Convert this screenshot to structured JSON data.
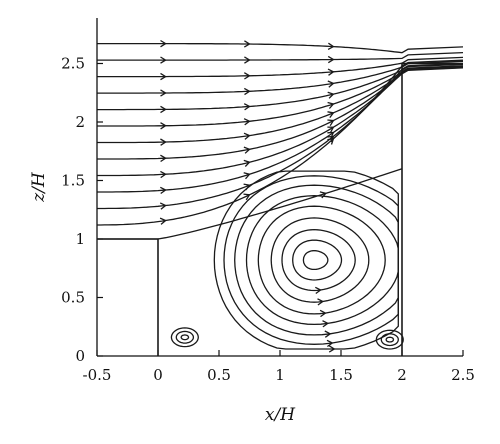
{
  "chart_data": {
    "type": "streamline",
    "xlabel": "x/H",
    "ylabel": "z/H",
    "xlim": [
      -0.5,
      2.5
    ],
    "ylim": [
      0,
      2.75
    ],
    "xticks": [
      "-0.5",
      "0",
      "0.5",
      "1",
      "1.5",
      "2",
      "2.5"
    ],
    "yticks": [
      "0",
      "0.5",
      "1",
      "1.5",
      "2",
      "2.5"
    ],
    "geometry": {
      "upstream_step": {
        "x": [
          -0.5,
          0
        ],
        "z_top": 1
      },
      "cavity": {
        "x": [
          0,
          2
        ],
        "z_bottom": 0
      },
      "downstream_step": {
        "x": [
          2,
          2.5
        ],
        "z_top": 2.5
      }
    },
    "features": {
      "primary_vortex_center": [
        1.28,
        0.82
      ],
      "upstream_corner_vortex_center": [
        0.22,
        0.16
      ],
      "downstream_corner_vortex_center": [
        1.9,
        0.14
      ],
      "shear_layer_from": [
        0,
        1
      ],
      "shear_layer_to": [
        2,
        1.6
      ]
    }
  }
}
